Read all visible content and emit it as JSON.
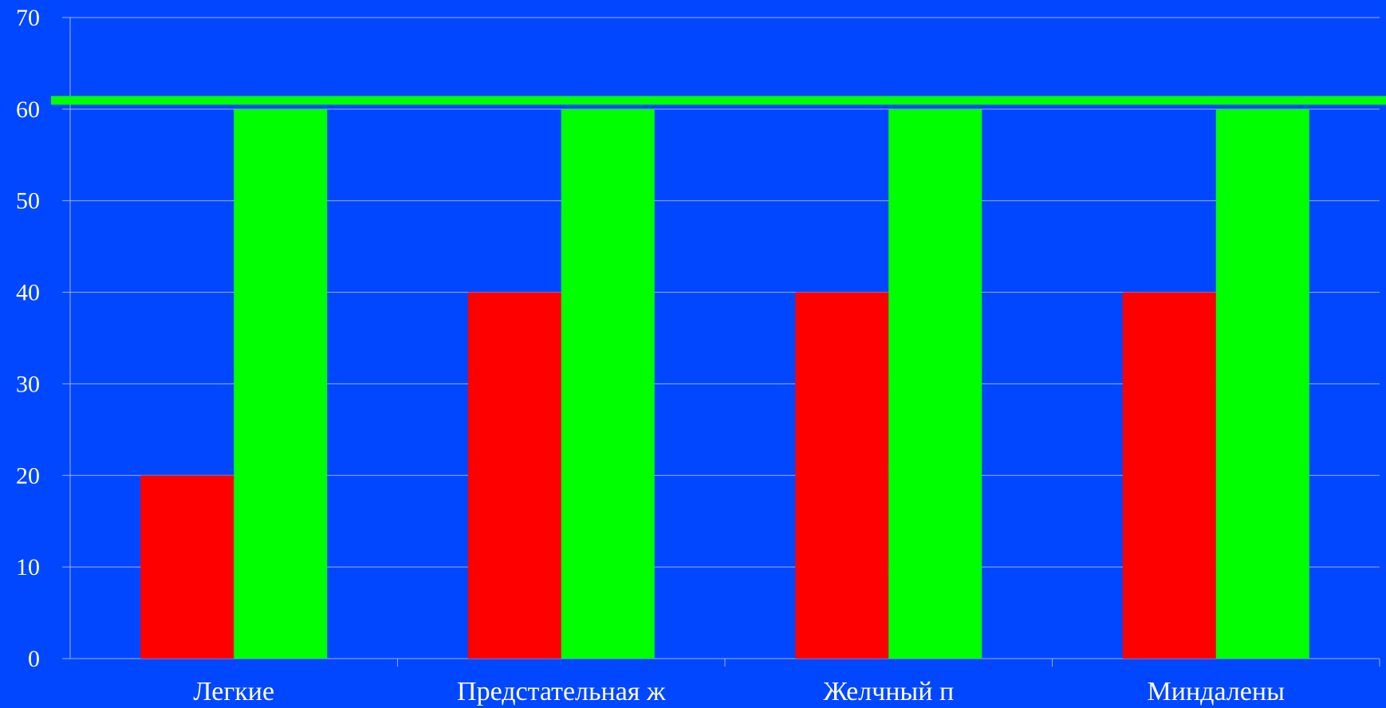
{
  "chart_data": {
    "type": "bar",
    "categories": [
      "Легкие",
      "Предстательная ж",
      "Желчный п",
      "Миндалены"
    ],
    "series": [
      {
        "values": [
          20,
          40,
          40,
          40
        ],
        "color": "#ff0000"
      },
      {
        "values": [
          60,
          60,
          60,
          60
        ],
        "color": "#00ff00"
      }
    ],
    "reference_line": {
      "value": 61,
      "color": "#00ff00"
    },
    "ylim": [
      0,
      70
    ],
    "yticks": [
      0,
      10,
      20,
      30,
      40,
      50,
      60,
      70
    ],
    "grid": true,
    "legend": "none",
    "background_color": "#0047ff",
    "grid_color": "#9fb0ff",
    "text_color": "#ffffff"
  }
}
